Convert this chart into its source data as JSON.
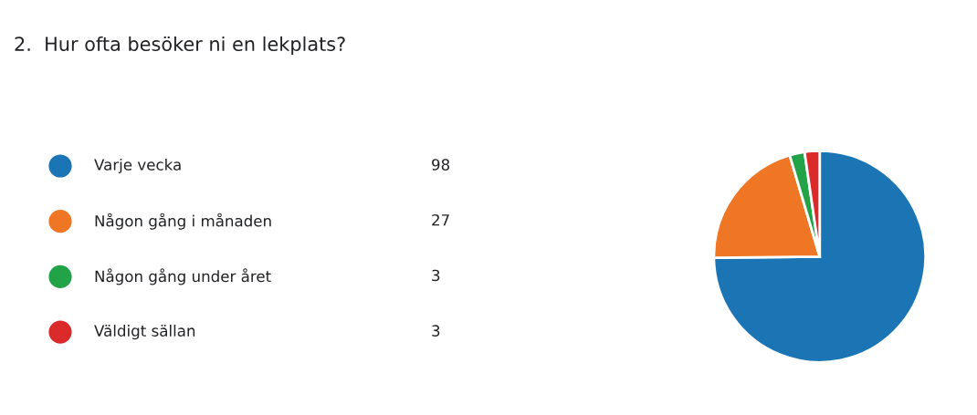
{
  "chart_data": {
    "type": "pie",
    "title": "2.  Hur ofta besöker ni en lekplats?",
    "categories": [
      "Varje vecka",
      "Någon gång i månaden",
      "Någon gång under året",
      "Väldigt sällan"
    ],
    "values": [
      98,
      27,
      3,
      3
    ],
    "colors": [
      "#1b75b5",
      "#ee7624",
      "#22a347",
      "#da2a2a"
    ],
    "data_labels": true,
    "legend": "left"
  }
}
